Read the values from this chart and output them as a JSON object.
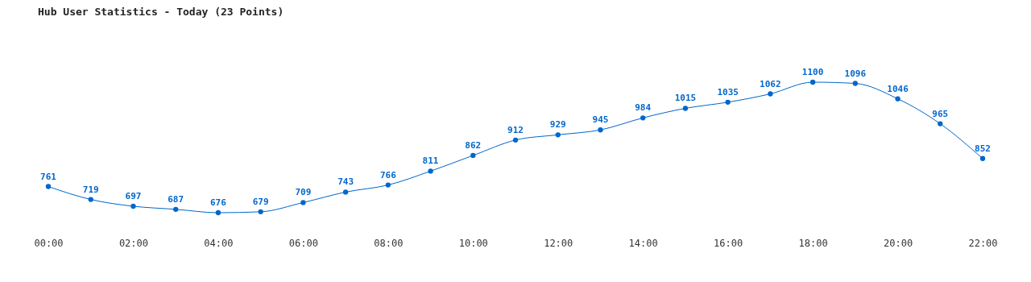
{
  "chart_data": {
    "type": "line",
    "title": "Hub User Statistics - Today (23 Points)",
    "x": [
      0,
      1,
      2,
      3,
      4,
      5,
      6,
      7,
      8,
      9,
      10,
      11,
      12,
      13,
      14,
      15,
      16,
      17,
      18,
      19,
      20,
      21,
      22
    ],
    "values": [
      761,
      719,
      697,
      687,
      676,
      679,
      709,
      743,
      766,
      811,
      862,
      912,
      929,
      945,
      984,
      1015,
      1035,
      1062,
      1100,
      1096,
      1046,
      965,
      852
    ],
    "color": "#0066cc",
    "marker": "circle",
    "data_labels": true,
    "xlim": [
      0,
      22
    ],
    "xticks": [
      {
        "value": 0,
        "label": "00:00"
      },
      {
        "value": 2,
        "label": "02:00"
      },
      {
        "value": 4,
        "label": "04:00"
      },
      {
        "value": 6,
        "label": "06:00"
      },
      {
        "value": 8,
        "label": "08:00"
      },
      {
        "value": 10,
        "label": "10:00"
      },
      {
        "value": 12,
        "label": "12:00"
      },
      {
        "value": 14,
        "label": "14:00"
      },
      {
        "value": 16,
        "label": "16:00"
      },
      {
        "value": 18,
        "label": "18:00"
      },
      {
        "value": 20,
        "label": "20:00"
      },
      {
        "value": 22,
        "label": "22:00"
      }
    ]
  }
}
